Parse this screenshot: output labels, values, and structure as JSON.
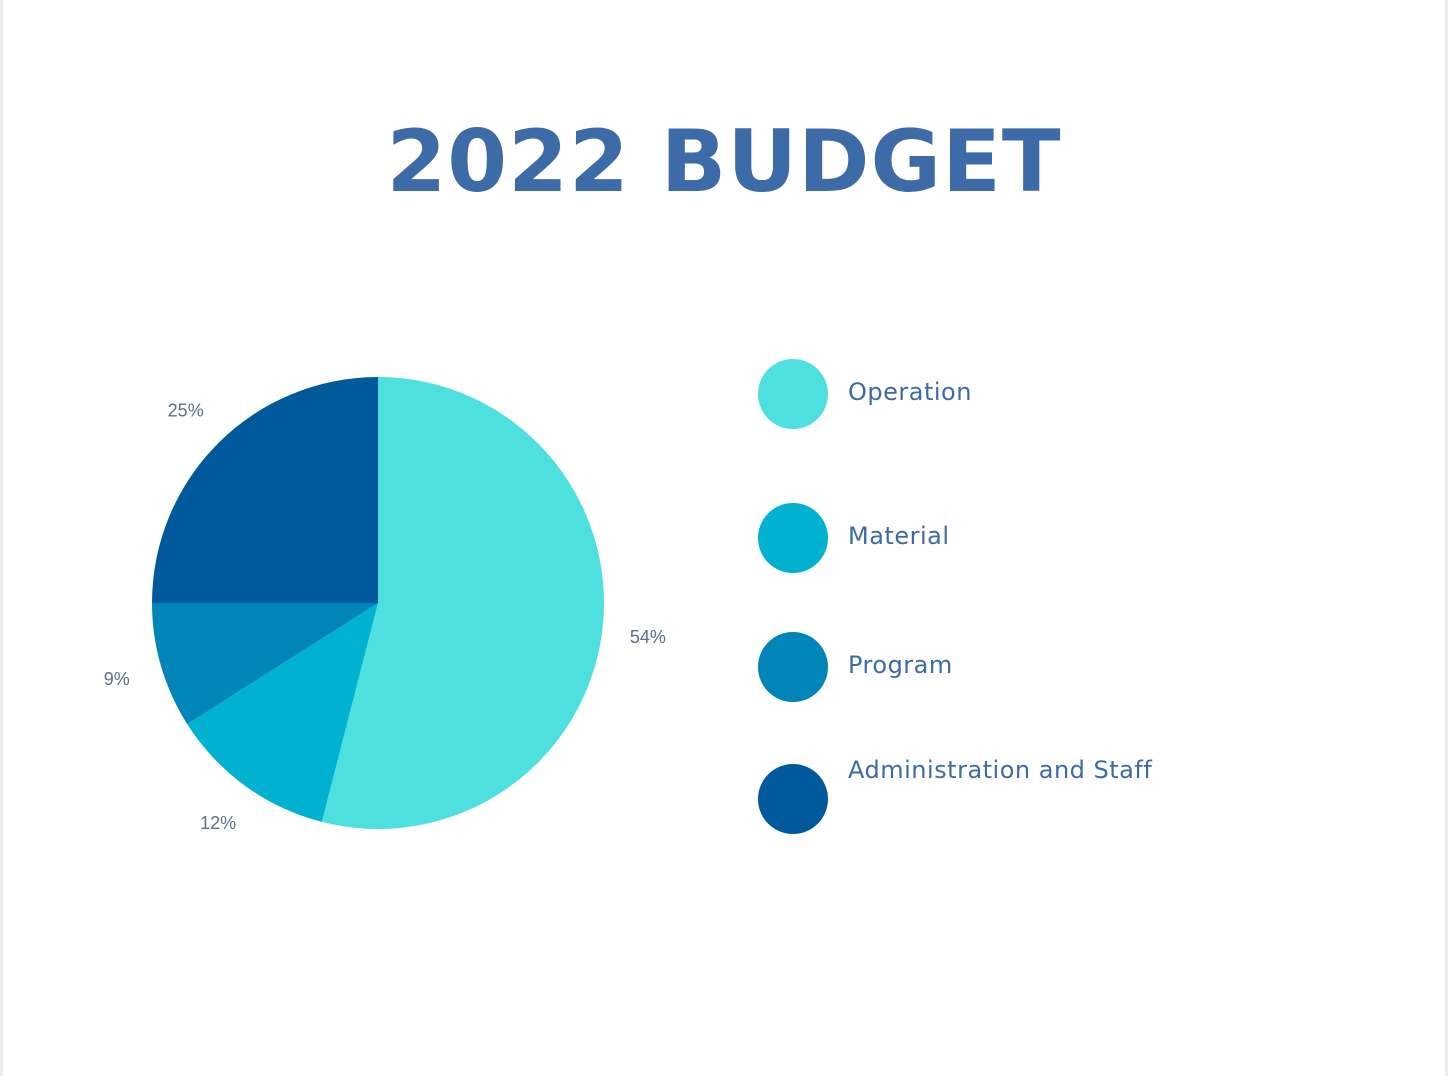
{
  "chart_data": {
    "type": "pie",
    "title": "2022 BUDGET",
    "categories": [
      "Operation",
      "Material",
      "Program",
      "Administration and Staff"
    ],
    "values": [
      54,
      12,
      9,
      25
    ],
    "value_labels": [
      "54%",
      "12%",
      "9%",
      "25%"
    ],
    "colors": [
      "#4de0df",
      "#00b2cf",
      "#0085b8",
      "#00599b"
    ],
    "legend_position": "right"
  }
}
